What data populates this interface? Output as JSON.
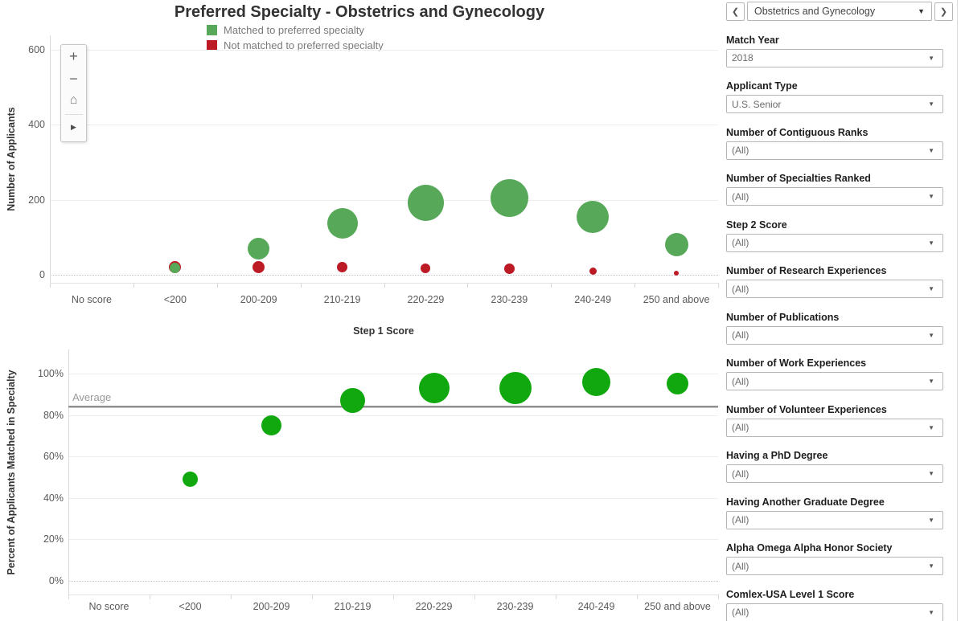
{
  "title": "Preferred Specialty - Obstetrics and Gynecology",
  "ui": {
    "caret_icon": "▼"
  },
  "legend": {
    "items": [
      {
        "label": "Matched to preferred specialty",
        "color": "#57A859"
      },
      {
        "label": "Not matched to preferred specialty",
        "color": "#BC1B26"
      }
    ]
  },
  "toolbar": {
    "items": [
      {
        "name": "zoom-in",
        "glyph": "+"
      },
      {
        "name": "zoom-out",
        "glyph": "−"
      },
      {
        "name": "home",
        "glyph": "⌂"
      },
      {
        "name": "play",
        "glyph": "▶"
      }
    ]
  },
  "specialty_nav": {
    "prev_icon": "❮",
    "value": "Obstetrics and Gynecology",
    "next_icon": "❯"
  },
  "filters": [
    {
      "label": "Match Year",
      "value": "2018"
    },
    {
      "label": "Applicant Type",
      "value": "U.S. Senior"
    },
    {
      "label": "Number of Contiguous Ranks",
      "value": "(All)"
    },
    {
      "label": "Number of Specialties Ranked",
      "value": "(All)"
    },
    {
      "label": "Step 2 Score",
      "value": "(All)"
    },
    {
      "label": "Number of Research Experiences",
      "value": "(All)"
    },
    {
      "label": "Number of Publications",
      "value": "(All)"
    },
    {
      "label": "Number of Work Experiences",
      "value": "(All)"
    },
    {
      "label": "Number of Volunteer Experiences",
      "value": "(All)"
    },
    {
      "label": "Having a PhD Degree",
      "value": "(All)"
    },
    {
      "label": "Having Another Graduate Degree",
      "value": "(All)"
    },
    {
      "label": "Alpha Omega Alpha Honor Society",
      "value": "(All)"
    },
    {
      "label": "Comlex-USA Level 1 Score",
      "value": "(All)"
    }
  ],
  "chart_data": [
    {
      "type": "bubble",
      "title": "Preferred Specialty - Obstetrics and Gynecology",
      "xlabel": "Step 1 Score",
      "ylabel": "Number of Applicants",
      "categories": [
        "No score",
        "<200",
        "200-209",
        "210-219",
        "220-229",
        "230-239",
        "240-249",
        "250 and above"
      ],
      "ylim": [
        0,
        600
      ],
      "yticks": [
        0,
        200,
        400,
        600
      ],
      "ytick_labels": [
        "0",
        "200",
        "400",
        "600"
      ],
      "grid": "horizontal",
      "legend_position": "top",
      "series": [
        {
          "id": "matched",
          "name": "Matched to preferred specialty",
          "color": "#57A859",
          "values": [
            null,
            18,
            70,
            137,
            192,
            205,
            154,
            80
          ],
          "radii": [
            null,
            6.5,
            13.5,
            19,
            22.5,
            23.5,
            20,
            14.5
          ]
        },
        {
          "id": "not-matched",
          "name": "Not matched to preferred specialty",
          "color": "#BC1B26",
          "values": [
            null,
            20,
            21,
            20,
            17,
            16,
            9,
            4
          ],
          "radii": [
            null,
            7.5,
            7.5,
            6.5,
            6,
            6.5,
            4.5,
            3
          ]
        }
      ]
    },
    {
      "type": "bubble",
      "title": "",
      "xlabel": "",
      "ylabel": "Percent of Applicants Matched in Specialty",
      "categories": [
        "No score",
        "<200",
        "200-209",
        "210-219",
        "220-229",
        "230-239",
        "240-249",
        "250 and above"
      ],
      "ylim": [
        0,
        100
      ],
      "yticks": [
        0,
        20,
        40,
        60,
        80,
        100
      ],
      "ytick_labels": [
        "0%",
        "20%",
        "40%",
        "60%",
        "80%",
        "100%"
      ],
      "grid": "horizontal",
      "average": 84,
      "average_label": "Average",
      "series": [
        {
          "id": "matched-percent",
          "name": "Percent of applicants matched",
          "color": "#10A80E",
          "values": [
            null,
            49,
            75,
            87,
            93,
            93,
            96,
            95
          ],
          "radii": [
            null,
            9.5,
            12.5,
            15.5,
            19,
            20,
            17.5,
            13.5
          ]
        }
      ]
    }
  ]
}
